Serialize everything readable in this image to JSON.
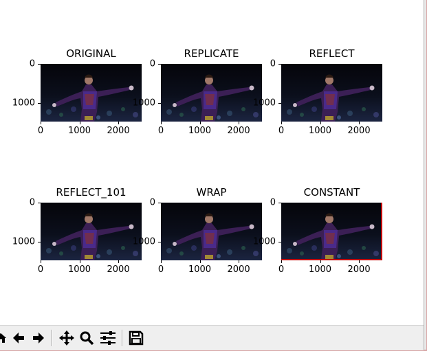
{
  "figure": {
    "panels": [
      {
        "title": "ORIGINAL",
        "variant": "original"
      },
      {
        "title": "REPLICATE",
        "variant": "replicate"
      },
      {
        "title": "REFLECT",
        "variant": "reflect"
      },
      {
        "title": "REFLECT_101",
        "variant": "reflect_101"
      },
      {
        "title": "WRAP",
        "variant": "wrap"
      },
      {
        "title": "CONSTANT",
        "variant": "constant",
        "border_color": "#c00000"
      }
    ],
    "yticks": [
      "0",
      "1000"
    ],
    "xticks": [
      "0",
      "1000",
      "2000"
    ]
  },
  "toolbar": {
    "buttons": [
      {
        "name": "home",
        "icon": "home-icon"
      },
      {
        "name": "back",
        "icon": "arrow-left-icon"
      },
      {
        "name": "forward",
        "icon": "arrow-right-icon"
      },
      {
        "name": "pan",
        "icon": "move-icon"
      },
      {
        "name": "zoom",
        "icon": "magnifier-icon"
      },
      {
        "name": "configure-subplots",
        "icon": "sliders-icon"
      },
      {
        "name": "save",
        "icon": "floppy-disk-icon"
      }
    ]
  }
}
